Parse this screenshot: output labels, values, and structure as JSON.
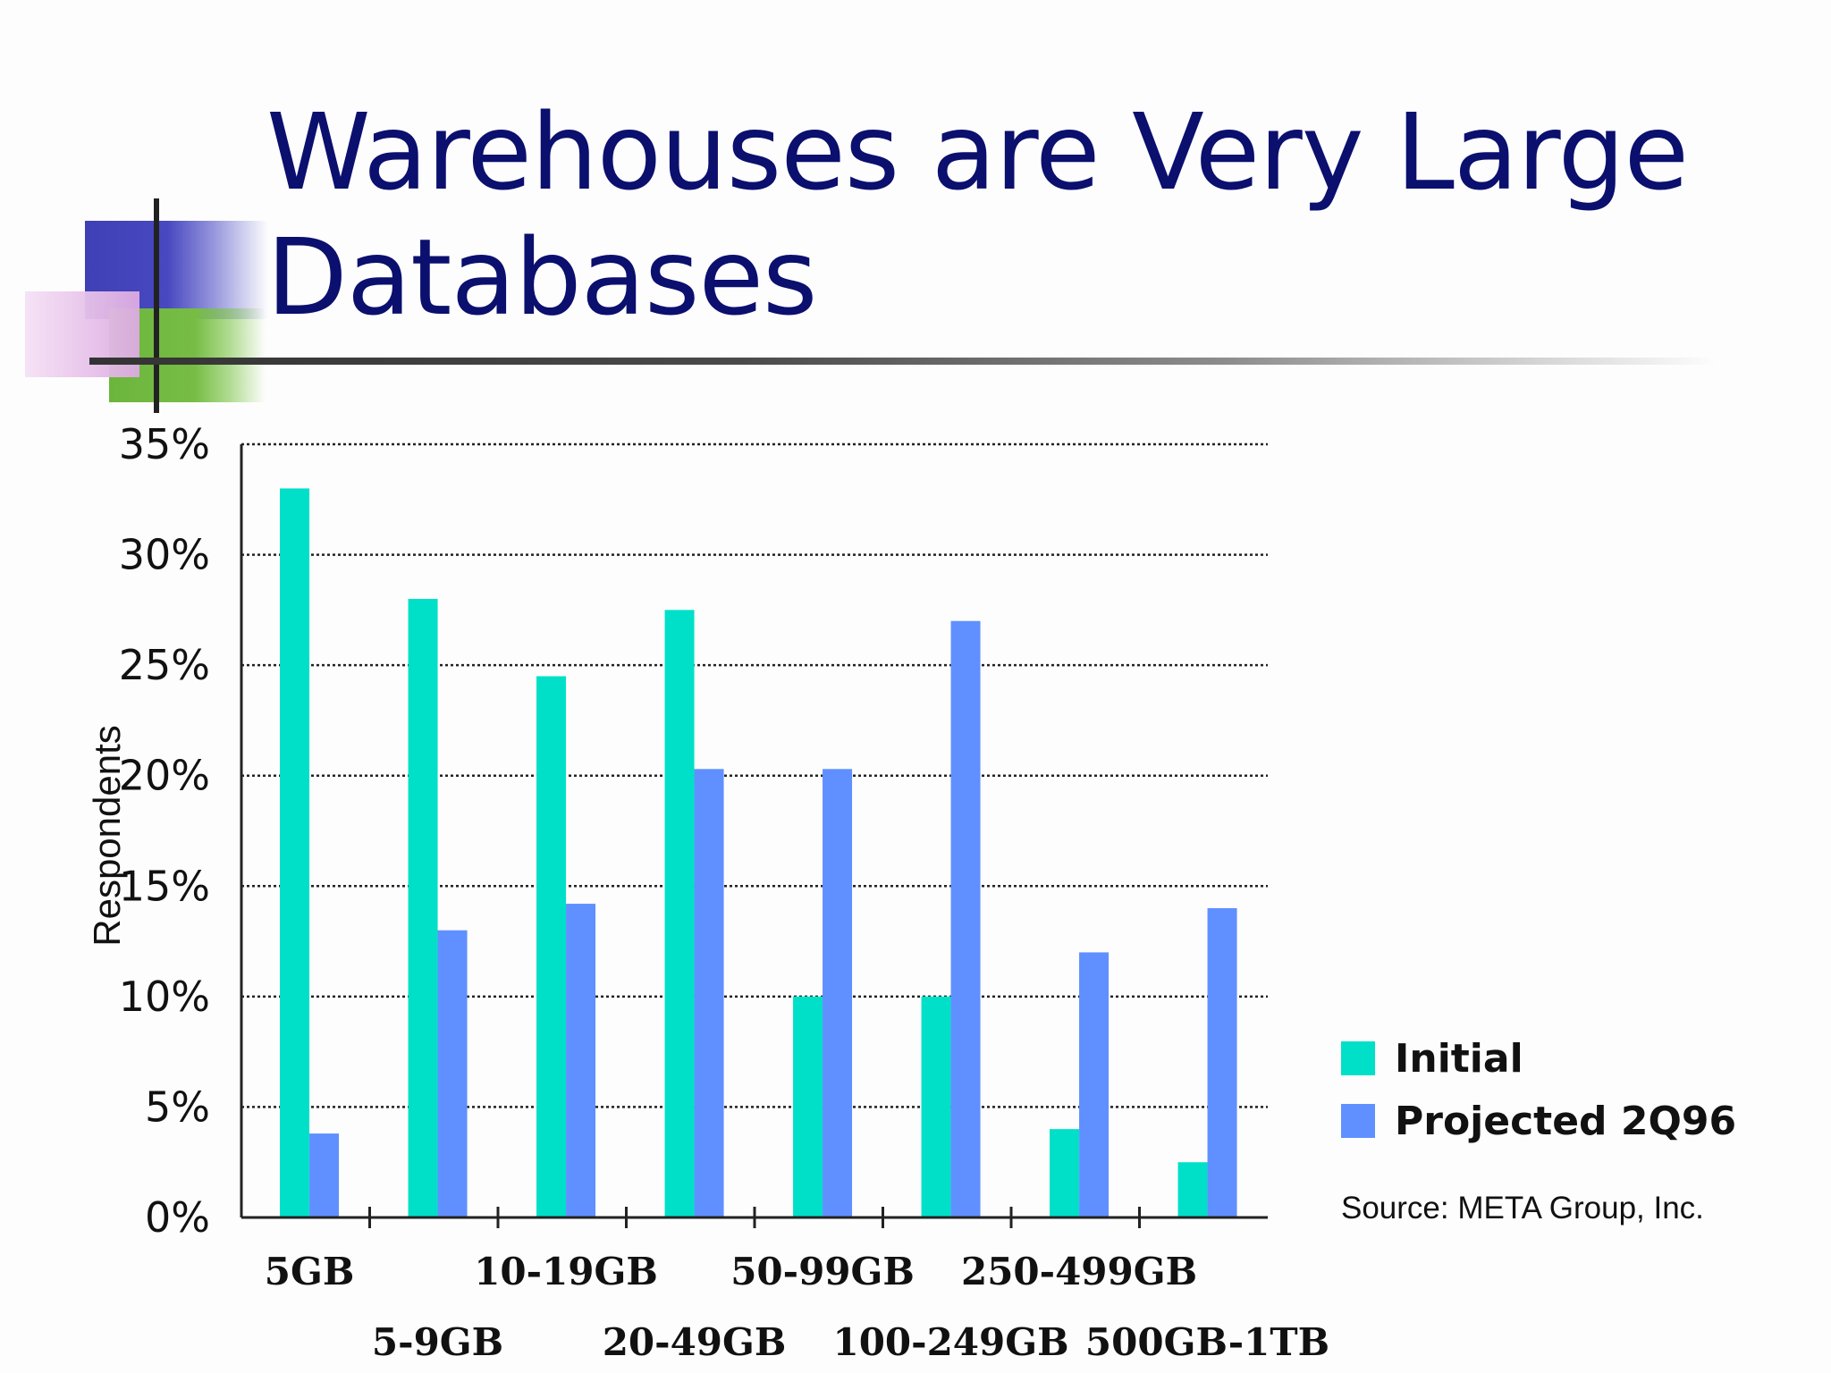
{
  "slide": {
    "title_line1": "Warehouses are Very Large",
    "title_line2": "Databases",
    "source_note": "Source: META Group, Inc."
  },
  "chart_data": {
    "type": "bar",
    "title": "",
    "xlabel": "",
    "ylabel": "Respondents",
    "ylim": [
      0,
      35
    ],
    "y_ticks": [
      0,
      5,
      10,
      15,
      20,
      25,
      30,
      35
    ],
    "y_tick_labels": [
      "0%",
      "5%",
      "10%",
      "15%",
      "20%",
      "25%",
      "30%",
      "35%"
    ],
    "y_unit": "%",
    "grid": "horizontal dotted",
    "legend_position": "right",
    "categories": [
      "5GB",
      "5-9GB",
      "10-19GB",
      "20-49GB",
      "50-99GB",
      "100-249GB",
      "250-499GB",
      "500GB-1TB"
    ],
    "series": [
      {
        "name": "Initial",
        "color": "#00e0c8",
        "values": [
          33,
          28,
          24.5,
          27.5,
          10,
          10,
          4,
          2.5
        ]
      },
      {
        "name": "Projected 2Q96",
        "color": "#6090ff",
        "values": [
          3.8,
          13,
          14.2,
          20.3,
          20.3,
          27,
          12,
          14
        ]
      }
    ]
  }
}
